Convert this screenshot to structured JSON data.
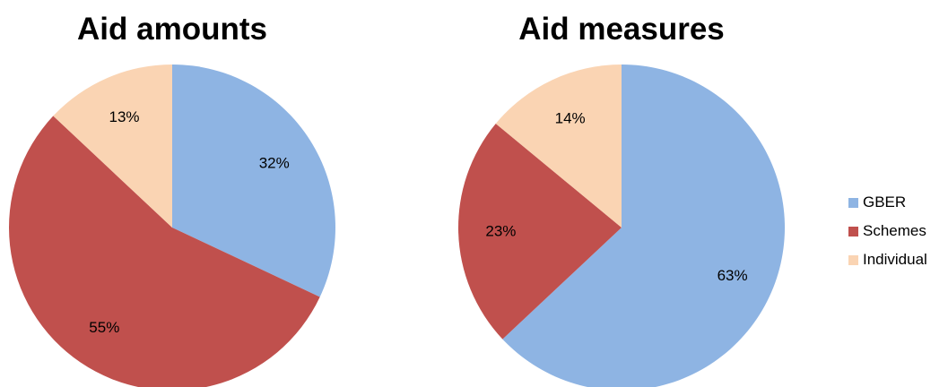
{
  "chart_data": [
    {
      "type": "pie",
      "title": "Aid amounts",
      "categories": [
        "GBER",
        "Schemes",
        "Individual"
      ],
      "values": [
        32,
        55,
        13
      ],
      "labels": [
        "32%",
        "55%",
        "13%"
      ],
      "start_angle": "12 o'clock",
      "direction": "clockwise"
    },
    {
      "type": "pie",
      "title": "Aid measures",
      "categories": [
        "GBER",
        "Schemes",
        "Individual"
      ],
      "values": [
        63,
        23,
        14
      ],
      "labels": [
        "63%",
        "23%",
        "14%"
      ],
      "start_angle": "12 o'clock",
      "direction": "clockwise"
    }
  ],
  "legend": {
    "placement": "right",
    "items": [
      {
        "label": "GBER",
        "color": "#8EB4E3"
      },
      {
        "label": "Schemes",
        "color": "#C0504D"
      },
      {
        "label": "Individual",
        "color": "#FAD4B3"
      }
    ]
  }
}
